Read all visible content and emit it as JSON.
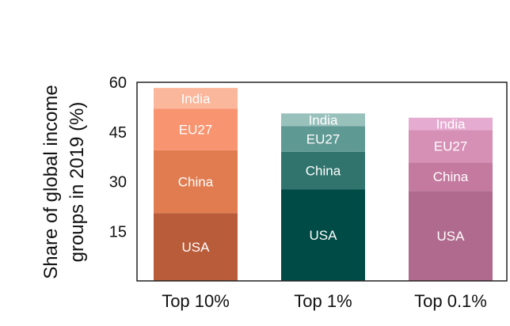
{
  "chart_data": {
    "type": "bar",
    "stacked": true,
    "title": "",
    "xlabel": "",
    "ylabel_lines": [
      "Share of global income",
      "groups in 2019 (%)"
    ],
    "ylim": [
      0,
      60
    ],
    "yticks": [
      15,
      30,
      45,
      60
    ],
    "grid": false,
    "categories": [
      "Top 10%",
      "Top 1%",
      "Top 0.1%"
    ],
    "series": [
      {
        "name": "USA",
        "values": [
          20.5,
          27.7,
          27.2
        ]
      },
      {
        "name": "China",
        "values": [
          19.0,
          11.3,
          8.6
        ]
      },
      {
        "name": "EU27",
        "values": [
          12.5,
          7.8,
          9.8
        ]
      },
      {
        "name": "India",
        "values": [
          6.3,
          3.8,
          3.7
        ]
      }
    ],
    "colors": [
      [
        "#b95c3a",
        "#e17c50",
        "#f89470",
        "#fbb79c"
      ],
      [
        "#004b46",
        "#31746e",
        "#5f9993",
        "#98c1bc"
      ],
      [
        "#b06a8e",
        "#c4799f",
        "#d690b6",
        "#e6abd0"
      ]
    ]
  }
}
